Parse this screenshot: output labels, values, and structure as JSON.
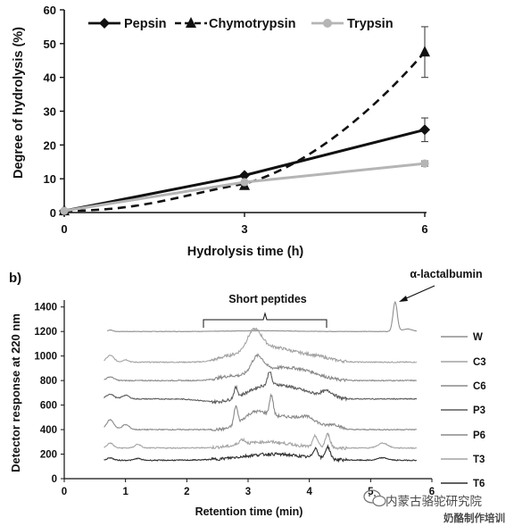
{
  "chart_data": [
    {
      "type": "line",
      "xlabel": "Hydrolysis time (h)",
      "ylabel": "Degree of hydrolysis (%)",
      "xlim": [
        0,
        6
      ],
      "ylim": [
        0,
        60
      ],
      "x_ticks": [
        "0",
        "3",
        "6"
      ],
      "y_ticks": [
        "0",
        "10",
        "20",
        "30",
        "40",
        "50",
        "60"
      ],
      "x": [
        0,
        3,
        6
      ],
      "legend_position": "top",
      "series": [
        {
          "name": "Pepsin",
          "values": [
            0.5,
            11,
            24.5
          ],
          "errors": [
            0,
            0.5,
            3.5
          ],
          "color": "#111111",
          "dash": "solid",
          "marker": "diamond"
        },
        {
          "name": "Chymotrypsin",
          "values": [
            0.5,
            8,
            47.5
          ],
          "errors": [
            0,
            0.5,
            7.5
          ],
          "color": "#111111",
          "dash": "dashed",
          "marker": "triangle"
        },
        {
          "name": "Trypsin",
          "values": [
            0.5,
            9,
            14.5
          ],
          "errors": [
            0,
            0.5,
            0.8
          ],
          "color": "#b5b5b5",
          "dash": "solid",
          "marker": "circle"
        }
      ]
    },
    {
      "type": "line",
      "panel_label": "b)",
      "xlabel": "Retention time (min)",
      "ylabel": "Detector response at 220 nm",
      "xlim": [
        0,
        6
      ],
      "ylim": [
        0,
        1500
      ],
      "x_ticks": [
        "0",
        "1",
        "2",
        "3",
        "4",
        "5",
        "6"
      ],
      "y_ticks": [
        "0",
        "200",
        "400",
        "600",
        "800",
        "1000",
        "1200",
        "1400"
      ],
      "legend_position": "right",
      "annotations": [
        {
          "text": "Short peptides",
          "x_start": 2.25,
          "x_end": 4.3,
          "y": 1270
        },
        {
          "text": "α-lactalbumin",
          "x": 5.45,
          "y": 1450
        }
      ],
      "series": [
        {
          "name": "W",
          "baseline": 1200,
          "x_start": 0.7,
          "x_end": 5.75,
          "color": "#8f8f8f"
        },
        {
          "name": "C3",
          "baseline": 950,
          "x_start": 0.65,
          "x_end": 5.75,
          "color": "#a3a3a3"
        },
        {
          "name": "C6",
          "baseline": 800,
          "x_start": 0.65,
          "x_end": 5.75,
          "color": "#8a8a8a"
        },
        {
          "name": "P3",
          "baseline": 650,
          "x_start": 0.65,
          "x_end": 5.75,
          "color": "#5c5c5c"
        },
        {
          "name": "P6",
          "baseline": 400,
          "x_start": 0.65,
          "x_end": 5.75,
          "color": "#8a8a8a"
        },
        {
          "name": "T3",
          "baseline": 250,
          "x_start": 0.65,
          "x_end": 5.75,
          "color": "#a3a3a3"
        },
        {
          "name": "T6",
          "baseline": 150,
          "x_start": 0.65,
          "x_end": 5.75,
          "color": "#2e2e2e"
        }
      ]
    }
  ],
  "watermark": {
    "text_line1": "内蒙古骆驼研究院",
    "text_line2": "奶酪制作培训"
  }
}
